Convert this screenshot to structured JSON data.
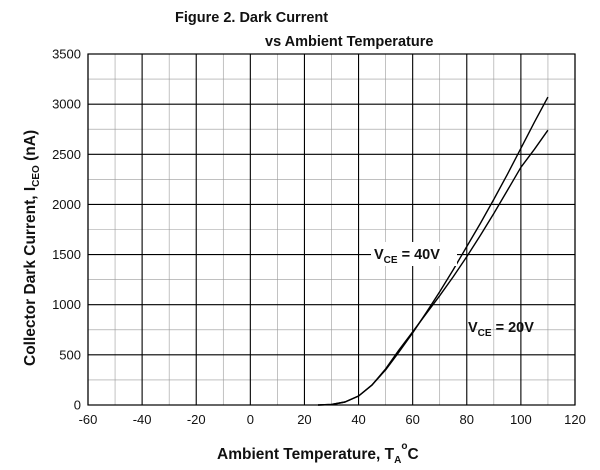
{
  "chart_data": {
    "type": "line",
    "title": "Figure 2. Dark Current",
    "subtitle": "vs Ambient Temperature",
    "xlabel": "Ambient Temperature, T_A°C",
    "xlabel_parts": {
      "main": "Ambient Temperature, T",
      "sub": "A",
      "sup": "o",
      "unit": "C"
    },
    "ylabel": "Collector Dark Current, I_CEO (nA)",
    "ylabel_parts": {
      "main": "Collector Dark Current, I",
      "sub": "CEO",
      "unit": " (nA)"
    },
    "xlim": [
      -60,
      120
    ],
    "ylim": [
      0,
      3500
    ],
    "xticks": [
      -60,
      -40,
      -20,
      0,
      20,
      40,
      60,
      80,
      100,
      120
    ],
    "yticks": [
      0,
      500,
      1000,
      1500,
      2000,
      2500,
      3000,
      3500
    ],
    "grid": true,
    "series": [
      {
        "name": "V_CE = 40V",
        "label_parts": {
          "main": "V",
          "sub": "CE",
          "rest": " = 40V"
        },
        "x": [
          25,
          30,
          35,
          40,
          45,
          50,
          55,
          60,
          65,
          70,
          75,
          80,
          85,
          90,
          95,
          100,
          105,
          110
        ],
        "y": [
          0,
          5,
          30,
          90,
          200,
          350,
          530,
          720,
          920,
          1130,
          1350,
          1580,
          1810,
          2050,
          2300,
          2560,
          2820,
          3070
        ]
      },
      {
        "name": "V_CE = 20V",
        "label_parts": {
          "main": "V",
          "sub": "CE",
          "rest": " = 20V"
        },
        "x": [
          25,
          30,
          35,
          40,
          45,
          50,
          55,
          60,
          65,
          70,
          75,
          80,
          85,
          90,
          95,
          100,
          105,
          110
        ],
        "y": [
          0,
          5,
          30,
          90,
          200,
          360,
          550,
          730,
          910,
          1090,
          1280,
          1480,
          1690,
          1910,
          2140,
          2370,
          2550,
          2740
        ]
      }
    ]
  }
}
